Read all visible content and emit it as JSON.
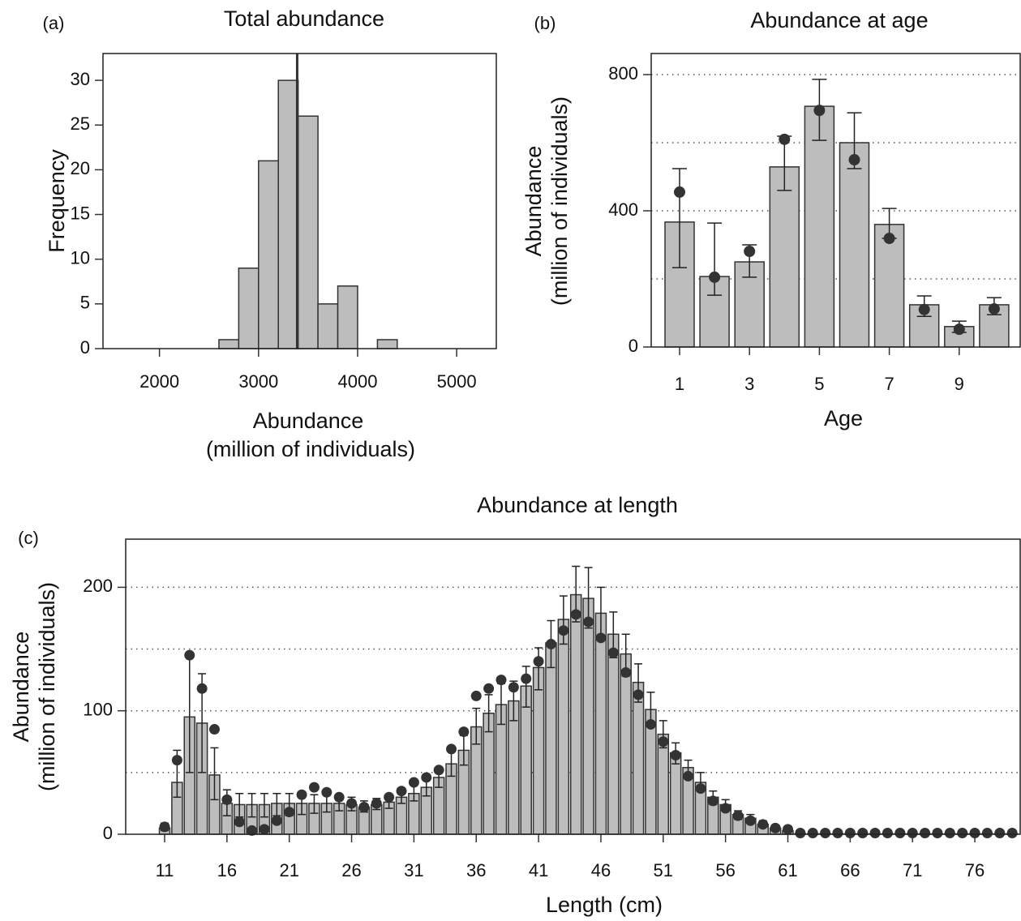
{
  "chart_data": [
    {
      "type": "histogram",
      "panel": "(a)",
      "title": "Total abundance",
      "ylabel": "Frequency",
      "xlabel": [
        "Abundance",
        "(million of individuals)"
      ],
      "bins": [
        2600,
        2800,
        3000,
        3200,
        3400,
        3600,
        3800,
        4000,
        4200,
        4400
      ],
      "counts": [
        1,
        9,
        21,
        30,
        26,
        5,
        7,
        0,
        1
      ],
      "reference_line": 3390,
      "color": "#bdbdbd",
      "xlim": [
        1430,
        5400
      ],
      "xticks": [
        2000,
        3000,
        4000,
        5000
      ],
      "ylim": [
        0,
        33
      ],
      "yticks": [
        0,
        5,
        10,
        15,
        20,
        25,
        30
      ]
    },
    {
      "type": "bar",
      "panel": "(b)",
      "title": "Abundance at age",
      "xlabel": "Age",
      "ylabel": [
        "Abundance",
        "(million of individuals)"
      ],
      "categories": [
        "1",
        null,
        "3",
        null,
        "5",
        null,
        "7",
        null,
        "9",
        null
      ],
      "values": [
        367,
        207,
        250,
        529,
        707,
        600,
        360,
        124,
        60,
        124
      ],
      "error_low": [
        233,
        152,
        205,
        460,
        607,
        524,
        319,
        90,
        43,
        95
      ],
      "error_high": [
        524,
        364,
        300,
        619,
        786,
        688,
        407,
        150,
        76,
        145
      ],
      "points": [
        455,
        205,
        281,
        610,
        695,
        550,
        319,
        110,
        52,
        112
      ],
      "color": "#bdbdbd",
      "point_color": "#333333",
      "ylim": [
        0,
        862
      ],
      "yticks": [
        0,
        400,
        800
      ],
      "grid_values": [
        200,
        400,
        600,
        800
      ]
    },
    {
      "type": "bar",
      "panel": "(c)",
      "title": "Abundance at length",
      "xlabel": "Length (cm)",
      "ylabel": [
        "Abundance",
        "(million of individuals)"
      ],
      "categories": [
        "11",
        null,
        null,
        null,
        null,
        "16",
        null,
        null,
        null,
        null,
        "21",
        null,
        null,
        null,
        null,
        "26",
        null,
        null,
        null,
        null,
        "31",
        null,
        null,
        null,
        null,
        "36",
        null,
        null,
        null,
        null,
        "41",
        null,
        null,
        null,
        null,
        "46",
        null,
        null,
        null,
        null,
        "51",
        null,
        null,
        null,
        null,
        "56",
        null,
        null,
        null,
        null,
        "61",
        null,
        null,
        null,
        null,
        "66",
        null,
        null,
        null,
        null,
        "71",
        null,
        null,
        null,
        null,
        "76",
        null,
        null,
        null
      ],
      "values": [
        5,
        42,
        95,
        90,
        48,
        25,
        24,
        24,
        24,
        25,
        25,
        25,
        25,
        25,
        25,
        24,
        22,
        24,
        26,
        30,
        33,
        38,
        46,
        57,
        68,
        87,
        98,
        105,
        108,
        120,
        135,
        155,
        174,
        194,
        191,
        179,
        162,
        146,
        123,
        101,
        81,
        66,
        54,
        42,
        30,
        24,
        16,
        13,
        8,
        5,
        3,
        0.5,
        0.5,
        0.5,
        0.5,
        0.5,
        0.5,
        0.5,
        0.5,
        0.5,
        0.5,
        0.5,
        0.5,
        0.5,
        0.5,
        0.5,
        0.5,
        0.5,
        0.5
      ],
      "error_low": [
        3,
        30,
        50,
        50,
        28,
        15,
        14,
        14,
        14,
        15,
        15,
        16,
        17,
        18,
        19,
        19,
        18,
        20,
        21,
        25,
        27,
        31,
        38,
        47,
        56,
        73,
        83,
        89,
        92,
        103,
        117,
        135,
        154,
        172,
        167,
        157,
        143,
        128,
        107,
        87,
        70,
        57,
        46,
        35,
        24,
        19,
        12,
        9,
        6,
        3,
        2,
        null,
        null,
        null,
        null,
        null,
        null,
        null,
        null,
        null,
        null,
        null,
        null,
        null,
        null,
        null,
        null,
        null,
        null
      ],
      "error_high": [
        9,
        68,
        145,
        130,
        70,
        36,
        33,
        33,
        33,
        33,
        33,
        33,
        32,
        32,
        31,
        30,
        27,
        29,
        31,
        36,
        40,
        45,
        54,
        67,
        80,
        102,
        113,
        122,
        124,
        136,
        151,
        173,
        193,
        217,
        216,
        200,
        180,
        162,
        138,
        115,
        92,
        74,
        60,
        50,
        35,
        28,
        19,
        16,
        11,
        7,
        5,
        null,
        null,
        null,
        null,
        null,
        null,
        null,
        null,
        null,
        null,
        null,
        null,
        null,
        null,
        null,
        null,
        null,
        null
      ],
      "points": [
        6,
        60,
        145,
        118,
        85,
        28,
        10,
        3,
        4,
        11,
        18,
        32,
        38,
        34,
        30,
        25,
        22,
        25,
        30,
        35,
        42,
        46,
        52,
        69,
        83,
        112,
        118,
        125,
        119,
        126,
        140,
        154,
        165,
        178,
        172,
        159,
        147,
        131,
        113,
        89,
        75,
        64,
        47,
        37,
        27,
        21,
        15,
        11,
        8,
        5,
        4,
        1,
        1,
        1,
        1,
        1,
        1,
        1,
        1,
        1,
        1,
        1,
        1,
        1,
        1,
        1,
        1,
        1,
        1
      ],
      "color": "#bdbdbd",
      "point_color": "#333333",
      "ylim": [
        0,
        239
      ],
      "yticks": [
        0,
        100,
        200
      ],
      "grid_values": [
        50,
        100,
        150,
        200
      ]
    }
  ]
}
